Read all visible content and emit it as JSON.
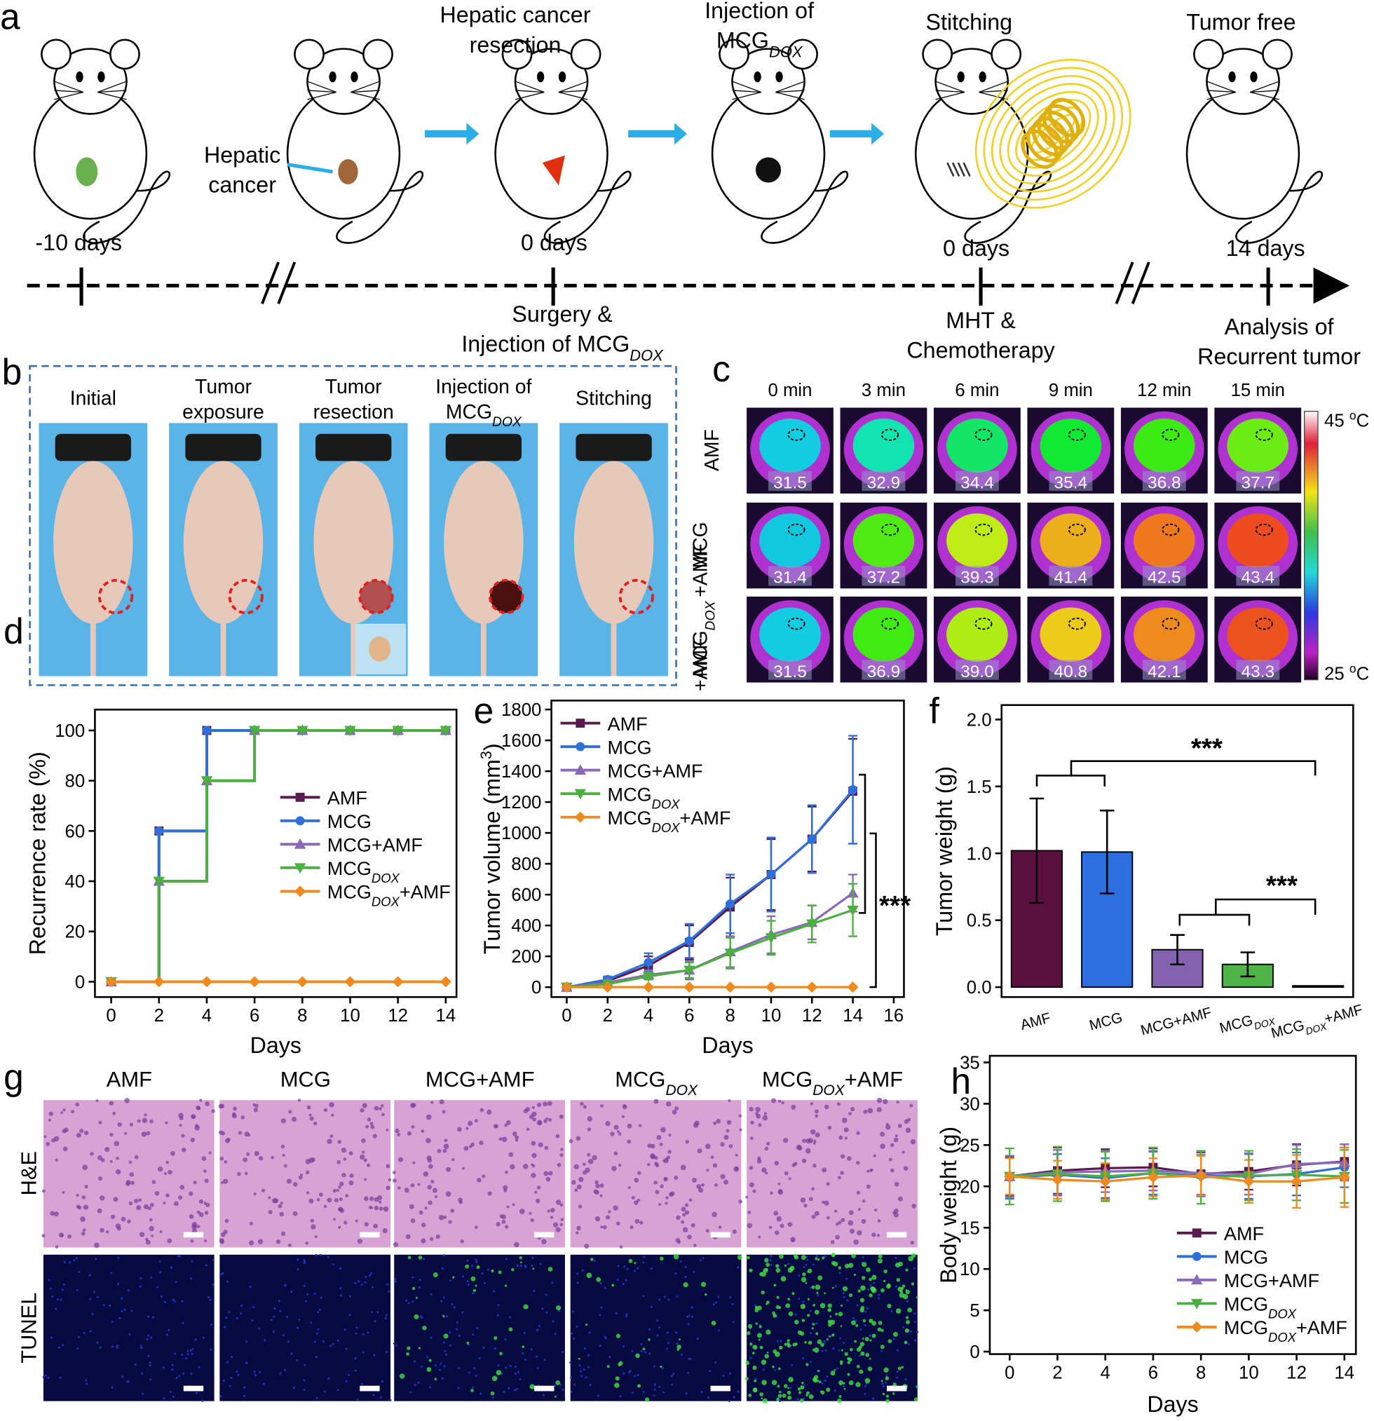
{
  "panel_labels": [
    "a",
    "b",
    "c",
    "d",
    "e",
    "f",
    "g",
    "h"
  ],
  "timeline": {
    "stage_labels": [
      {
        "lines": [
          "Hepatic cancer",
          "resection"
        ]
      },
      {
        "lines": [
          "Injection of",
          [
            "MCG",
            "DOX"
          ]
        ]
      },
      {
        "lines": [
          "Stitching"
        ]
      },
      {
        "lines": [
          "Tumor free"
        ]
      }
    ],
    "tumor_label": [
      "Hepatic",
      "cancer"
    ],
    "day_labels": [
      "-10 days",
      "0 days",
      "0 days",
      "14 days"
    ],
    "event_labels": [
      [
        "Surgery &",
        [
          "Injection of MCG",
          "DOX"
        ]
      ],
      [
        "MHT &",
        "Chemotherapy"
      ],
      [
        "Analysis of",
        "Recurrent tumor"
      ]
    ]
  },
  "surgery_photos": {
    "labels": [
      [
        "Initial"
      ],
      [
        "Tumor",
        "exposure"
      ],
      [
        "Tumor",
        "resection"
      ],
      [
        "Injection of",
        [
          "MCG",
          "DOX"
        ]
      ],
      [
        "Stitching"
      ]
    ]
  },
  "thermal": {
    "times": [
      "0 min",
      "3 min",
      "6 min",
      "9 min",
      "12 min",
      "15 min"
    ],
    "rows": [
      {
        "label": [
          "AMF"
        ],
        "values": [
          "31.5",
          "32.9",
          "34.4",
          "35.4",
          "36.8",
          "37.7"
        ]
      },
      {
        "label": [
          "MCG",
          "+AMF"
        ],
        "values": [
          "31.4",
          "37.2",
          "39.3",
          "41.4",
          "42.5",
          "43.4"
        ]
      },
      {
        "label": [
          [
            "MCG",
            "DOX"
          ],
          "+AMF"
        ],
        "values": [
          "31.5",
          "36.9",
          "39.0",
          "40.8",
          "42.1",
          "43.3"
        ]
      }
    ],
    "colorbar": {
      "max": [
        "45 ",
        "o",
        "C"
      ],
      "min": [
        "25 ",
        "o",
        "C"
      ]
    }
  },
  "histology": {
    "groups": [
      "AMF",
      "MCG",
      "MCG+AMF",
      [
        "MCG",
        "DOX"
      ],
      [
        "MCG",
        "DOX",
        "+AMF"
      ]
    ],
    "stains": [
      "H&E",
      "TUNEL"
    ]
  },
  "chart_data": [
    {
      "type": "line",
      "step": "post",
      "x": [
        0,
        2,
        4,
        6,
        8,
        10,
        12,
        14
      ],
      "xlim": [
        -0.68,
        14.45
      ],
      "ylim": [
        -6.1,
        108.3
      ],
      "xticks": [
        0,
        2,
        4,
        6,
        8,
        10,
        12,
        14
      ],
      "yticks": [
        0,
        20,
        40,
        60,
        80,
        100
      ],
      "xlabel": "Days",
      "ylabel": "Recurrence rate (%)",
      "legend": "center right",
      "series": [
        {
          "name": "AMF",
          "color": "#5a1a4e",
          "marker": "square",
          "values": [
            0,
            60,
            100,
            100,
            100,
            100,
            100,
            100
          ]
        },
        {
          "name": "MCG",
          "color": "#2f6fdc",
          "marker": "circle",
          "values": [
            0,
            60,
            100,
            100,
            100,
            100,
            100,
            100
          ]
        },
        {
          "name": "MCG+AMF",
          "color": "#8a6ab8",
          "marker": "triangle-up",
          "values": [
            0,
            40,
            80,
            100,
            100,
            100,
            100,
            100
          ]
        },
        {
          "name": [
            "MCG",
            "DOX"
          ],
          "color": "#4cb040",
          "marker": "triangle-down",
          "values": [
            0,
            40,
            80,
            100,
            100,
            100,
            100,
            100
          ]
        },
        {
          "name": [
            "MCG",
            "DOX",
            "+AMF"
          ],
          "color": "#f08a1e",
          "marker": "diamond",
          "values": [
            0,
            0,
            0,
            0,
            0,
            0,
            0,
            0
          ]
        }
      ]
    },
    {
      "type": "line",
      "x": [
        0,
        2,
        4,
        6,
        8,
        10,
        12,
        14
      ],
      "xlim": [
        -0.75,
        16.5
      ],
      "ylim": [
        -64,
        1858
      ],
      "xticks": [
        0,
        2,
        4,
        6,
        8,
        10,
        12,
        14,
        16
      ],
      "yticks": [
        0,
        200,
        400,
        600,
        800,
        1000,
        1200,
        1400,
        1600,
        1800
      ],
      "xlabel": "Days",
      "ylabel": [
        "Tumor volume (mm",
        "3",
        ")"
      ],
      "legend": "upper left",
      "annotations": [
        "***"
      ],
      "series": [
        {
          "name": "AMF",
          "color": "#5a1a4e",
          "marker": "square",
          "values": [
            0,
            40,
            140,
            290,
            520,
            730,
            960,
            1270
          ],
          "errors": [
            0,
            20,
            60,
            110,
            190,
            230,
            210,
            340
          ]
        },
        {
          "name": "MCG",
          "color": "#2f6fdc",
          "marker": "circle",
          "values": [
            0,
            50,
            160,
            300,
            540,
            730,
            960,
            1280
          ],
          "errors": [
            0,
            20,
            60,
            110,
            190,
            240,
            220,
            350
          ]
        },
        {
          "name": "MCG+AMF",
          "color": "#8a6ab8",
          "marker": "triangle-up",
          "values": [
            0,
            30,
            80,
            110,
            230,
            340,
            420,
            610
          ],
          "errors": [
            0,
            15,
            30,
            60,
            100,
            120,
            110,
            120
          ]
        },
        {
          "name": [
            "MCG",
            "DOX"
          ],
          "color": "#4cb040",
          "marker": "triangle-down",
          "values": [
            0,
            20,
            70,
            110,
            220,
            320,
            410,
            500
          ],
          "errors": [
            0,
            10,
            20,
            50,
            100,
            110,
            120,
            170
          ]
        },
        {
          "name": [
            "MCG",
            "DOX",
            "+AMF"
          ],
          "color": "#f08a1e",
          "marker": "diamond",
          "values": [
            0,
            0,
            0,
            0,
            0,
            0,
            0,
            0
          ],
          "errors": [
            0,
            0,
            0,
            0,
            0,
            0,
            0,
            0
          ]
        }
      ]
    },
    {
      "type": "bar",
      "categories": [
        "AMF",
        "MCG",
        "MCG+AMF",
        [
          "MCG",
          "DOX"
        ],
        [
          "MCG",
          "DOX",
          "+AMF"
        ]
      ],
      "values": [
        1.02,
        1.01,
        0.28,
        0.17,
        0.01
      ],
      "errors": [
        0.39,
        0.31,
        0.11,
        0.09,
        0
      ],
      "colors": [
        "#5a1040",
        "#2d6fe0",
        "#8462b0",
        "#4cb545",
        "#f07d1a"
      ],
      "ylim": [
        -0.074,
        2.108
      ],
      "yticks": [
        {
          "value": 0,
          "label": "0.0"
        },
        {
          "value": 0.5,
          "label": "0.5"
        },
        {
          "value": 1,
          "label": "1.0"
        },
        {
          "value": 1.5,
          "label": "1.5"
        },
        {
          "value": 2,
          "label": "2.0"
        }
      ],
      "ylabel": "Tumor weight (g)",
      "annotations": [
        "***",
        "***"
      ]
    },
    {
      "type": "line",
      "x": [
        0,
        2,
        4,
        6,
        8,
        10,
        12,
        14
      ],
      "xlim": [
        -0.83,
        14.48
      ],
      "ylim": [
        -0.3,
        35.8
      ],
      "xticks": [
        0,
        2,
        4,
        6,
        8,
        10,
        12,
        14
      ],
      "yticks": [
        0,
        5,
        10,
        15,
        20,
        25,
        30,
        35
      ],
      "xlabel": "Days",
      "ylabel": "Body weight (g)",
      "legend": "lower right",
      "series": [
        {
          "name": "AMF",
          "color": "#5a1a4e",
          "marker": "square",
          "values": [
            21.2,
            21.9,
            22.2,
            22.3,
            21.5,
            21.8,
            22.6,
            23.0
          ],
          "errors": [
            2.3,
            2.8,
            2.3,
            2.3,
            2.6,
            2.2,
            2.5,
            2.1
          ]
        },
        {
          "name": "MCG",
          "color": "#2f6fdc",
          "marker": "circle",
          "values": [
            21.1,
            21.4,
            21.0,
            21.6,
            21.3,
            21.2,
            21.5,
            22.3
          ],
          "errors": [
            2.6,
            2.5,
            2.4,
            2.6,
            2.5,
            2.7,
            2.6,
            2.4
          ]
        },
        {
          "name": "MCG+AMF",
          "color": "#8a6ab8",
          "marker": "triangle-up",
          "values": [
            21.2,
            21.7,
            21.8,
            21.9,
            21.6,
            21.5,
            22.7,
            22.9
          ],
          "errors": [
            2.5,
            2.7,
            2.5,
            2.4,
            2.6,
            2.5,
            2.3,
            2.2
          ]
        },
        {
          "name": [
            "MCG",
            "DOX"
          ],
          "color": "#4cb040",
          "marker": "triangle-down",
          "values": [
            21.2,
            21.5,
            21.2,
            21.6,
            21.1,
            21.3,
            21.4,
            21.2
          ],
          "errors": [
            3.4,
            3.3,
            3.0,
            3.1,
            3.2,
            3.0,
            3.1,
            3.2
          ]
        },
        {
          "name": [
            "MCG",
            "DOX",
            "+AMF"
          ],
          "color": "#f08a1e",
          "marker": "diamond",
          "values": [
            21.2,
            20.8,
            20.6,
            21.1,
            21.3,
            20.6,
            20.6,
            21.1
          ],
          "errors": [
            2.2,
            2.3,
            2.2,
            2.3,
            2.4,
            2.6,
            3.2,
            3.6
          ]
        }
      ]
    }
  ]
}
